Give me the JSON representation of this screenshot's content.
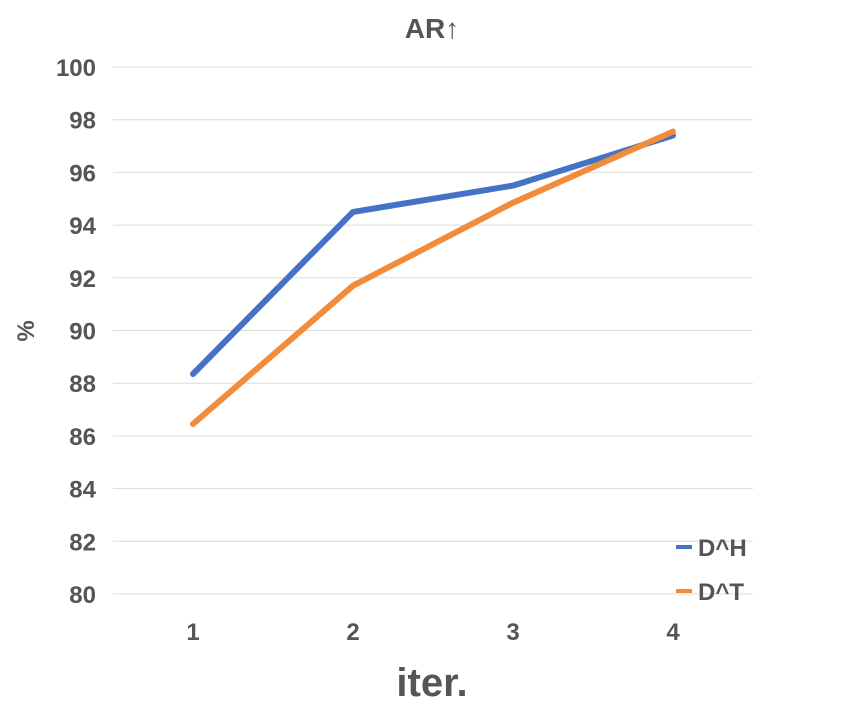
{
  "chart_data": {
    "type": "line",
    "title": "AR↑",
    "xlabel": "iter.",
    "ylabel": "%",
    "categories": [
      "1",
      "2",
      "3",
      "4"
    ],
    "series": [
      {
        "name": "D^H",
        "color": "#4472C4",
        "values": [
          88.35,
          94.5,
          95.5,
          97.4
        ]
      },
      {
        "name": "D^T",
        "color": "#F28B3A",
        "values": [
          86.45,
          91.7,
          94.85,
          97.55
        ]
      }
    ],
    "ylim": [
      80,
      100
    ],
    "yticks": [
      "80",
      "82",
      "84",
      "86",
      "88",
      "90",
      "92",
      "94",
      "96",
      "98",
      "100"
    ],
    "grid": true,
    "legend": "bottom-right"
  }
}
